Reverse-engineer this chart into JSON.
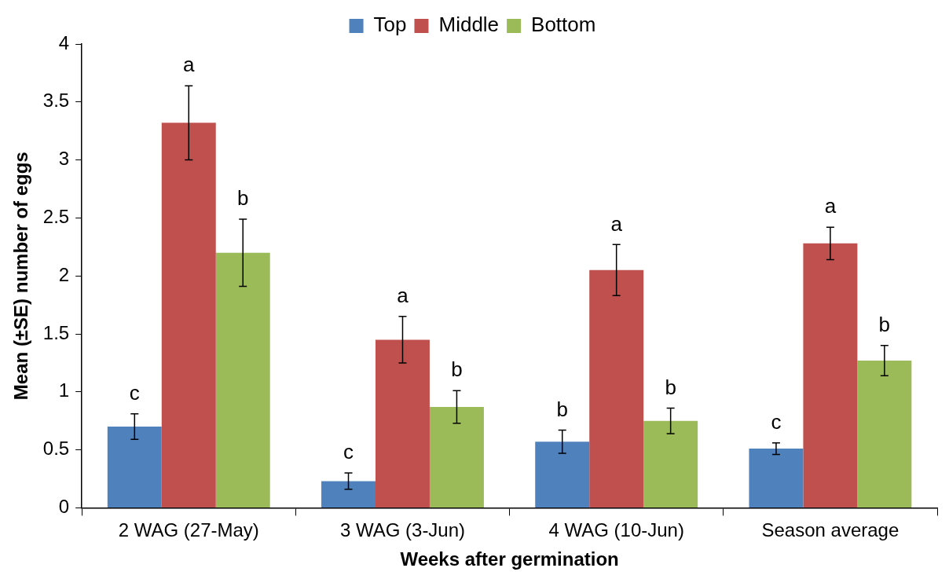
{
  "chart_data": {
    "type": "bar",
    "xlabel": "Weeks after germination",
    "ylabel": "Mean (±SE) number of eggs",
    "categories": [
      "2 WAG (27-May)",
      "3 WAG (3-Jun)",
      "4 WAG (10-Jun)",
      "Season average"
    ],
    "series": [
      {
        "name": "Top",
        "color": "#4f81bd",
        "values": [
          0.7,
          0.23,
          0.57,
          0.51
        ],
        "errors": [
          0.11,
          0.07,
          0.1,
          0.05
        ]
      },
      {
        "name": "Middle",
        "color": "#c0504d",
        "values": [
          3.32,
          1.45,
          2.05,
          2.28
        ],
        "errors": [
          0.32,
          0.2,
          0.22,
          0.14
        ]
      },
      {
        "name": "Bottom",
        "color": "#9bbb59",
        "values": [
          2.2,
          0.87,
          0.75,
          1.27
        ],
        "errors": [
          0.29,
          0.14,
          0.11,
          0.13
        ]
      }
    ],
    "ylim": [
      0,
      4
    ],
    "yticks": [
      0,
      0.5,
      1,
      1.5,
      2,
      2.5,
      3,
      3.5,
      4
    ],
    "grid": false,
    "legend": "top",
    "annotations": [
      "c",
      "a",
      "b",
      "c",
      "a",
      "b",
      "b",
      "a",
      "b",
      "c",
      "a",
      "b"
    ]
  }
}
